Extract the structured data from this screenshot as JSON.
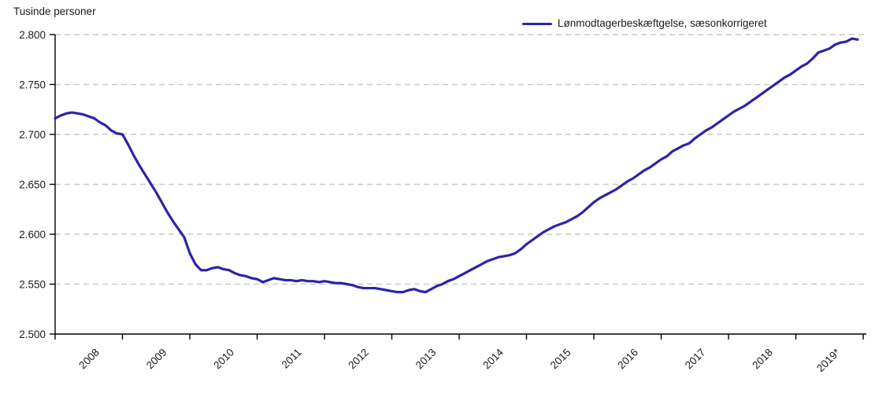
{
  "page": {
    "background": "#ffffff"
  },
  "chart": {
    "title": "Tusinde personer",
    "legend": {
      "label": "Lønmodtagerbeskæftgelse, sæsonkorrigeret",
      "swatch_color": "#2d23a8"
    }
  },
  "colors": {
    "line": "#2d23a8",
    "grid": "#c9c9c9",
    "axis": "#000000",
    "text": "#1a1a1a"
  },
  "chart_data": {
    "type": "line",
    "title": "Tusinde personer",
    "ylabel": "Tusinde personer",
    "xlabel": "",
    "ylim": [
      2500,
      2800
    ],
    "ytick_step": 50,
    "ytick_values": [
      2500,
      2550,
      2600,
      2650,
      2700,
      2750,
      2800
    ],
    "ytick_labels": [
      "2.500",
      "2.550",
      "2.600",
      "2.650",
      "2.700",
      "2.750",
      "2.800"
    ],
    "x_tick_labels": [
      "2008",
      "2009",
      "2010",
      "2011",
      "2012",
      "2013",
      "2014",
      "2015",
      "2016",
      "2017",
      "2018",
      "2019*"
    ],
    "grid": "dashed-horizontal",
    "legend_position": "top-right",
    "series": [
      {
        "name": "Lønmodtagerbeskæftgelse, sæsonkorrigeret",
        "color": "#2d23a8",
        "frequency": "monthly",
        "start": "2008-01",
        "end": "2019-12",
        "values": [
          2716,
          2719,
          2721,
          2722,
          2721,
          2720,
          2718,
          2716,
          2712,
          2709,
          2704,
          2701,
          2700,
          2690,
          2679,
          2669,
          2660,
          2651,
          2642,
          2632,
          2622,
          2613,
          2605,
          2597,
          2581,
          2570,
          2564,
          2564,
          2566,
          2567,
          2565,
          2564,
          2561,
          2559,
          2558,
          2556,
          2555,
          2552,
          2554,
          2556,
          2555,
          2554,
          2554,
          2553,
          2554,
          2553,
          2553,
          2552,
          2553,
          2552,
          2551,
          2551,
          2550,
          2549,
          2547,
          2546,
          2546,
          2546,
          2545,
          2544,
          2543,
          2542,
          2542,
          2544,
          2545,
          2543,
          2542,
          2545,
          2548,
          2550,
          2553,
          2555,
          2558,
          2561,
          2564,
          2567,
          2570,
          2573,
          2575,
          2577,
          2578,
          2579,
          2581,
          2585,
          2590,
          2594,
          2598,
          2602,
          2605,
          2608,
          2610,
          2612,
          2615,
          2618,
          2622,
          2627,
          2632,
          2636,
          2639,
          2642,
          2645,
          2649,
          2653,
          2656,
          2660,
          2664,
          2667,
          2671,
          2675,
          2678,
          2683,
          2686,
          2689,
          2691,
          2696,
          2700,
          2704,
          2707,
          2711,
          2715,
          2719,
          2723,
          2726,
          2729,
          2733,
          2737,
          2741,
          2745,
          2749,
          2753,
          2757,
          2760,
          2764,
          2768,
          2771,
          2776,
          2782,
          2784,
          2786,
          2790,
          2792,
          2793,
          2796,
          2795
        ]
      }
    ]
  }
}
